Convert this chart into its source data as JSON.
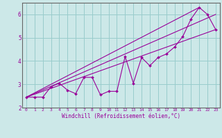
{
  "xlabel": "Windchill (Refroidissement éolien,°C)",
  "bg_color": "#cce8e8",
  "grid_color": "#99cccc",
  "line_color": "#990099",
  "spine_color": "#666666",
  "xlim": [
    -0.5,
    23.5
  ],
  "ylim": [
    2.0,
    6.5
  ],
  "xticks": [
    0,
    1,
    2,
    3,
    4,
    5,
    6,
    7,
    8,
    9,
    10,
    11,
    12,
    13,
    14,
    15,
    16,
    17,
    18,
    19,
    20,
    21,
    22,
    23
  ],
  "yticks": [
    2,
    3,
    4,
    5,
    6
  ],
  "data_x": [
    0,
    1,
    2,
    3,
    4,
    5,
    6,
    7,
    8,
    9,
    10,
    11,
    12,
    13,
    14,
    15,
    16,
    17,
    18,
    19,
    20,
    21,
    22,
    23
  ],
  "data_y": [
    2.45,
    2.45,
    2.45,
    2.9,
    3.05,
    2.75,
    2.6,
    3.3,
    3.3,
    2.55,
    2.7,
    2.7,
    4.2,
    3.05,
    4.15,
    3.8,
    4.15,
    4.3,
    4.6,
    5.05,
    5.8,
    6.3,
    6.0,
    5.35
  ],
  "trend1_x": [
    0,
    23
  ],
  "trend1_y": [
    2.45,
    6.0
  ],
  "trend2_x": [
    0,
    23
  ],
  "trend2_y": [
    2.45,
    5.35
  ],
  "trend3_x": [
    0,
    21
  ],
  "trend3_y": [
    2.45,
    6.3
  ]
}
